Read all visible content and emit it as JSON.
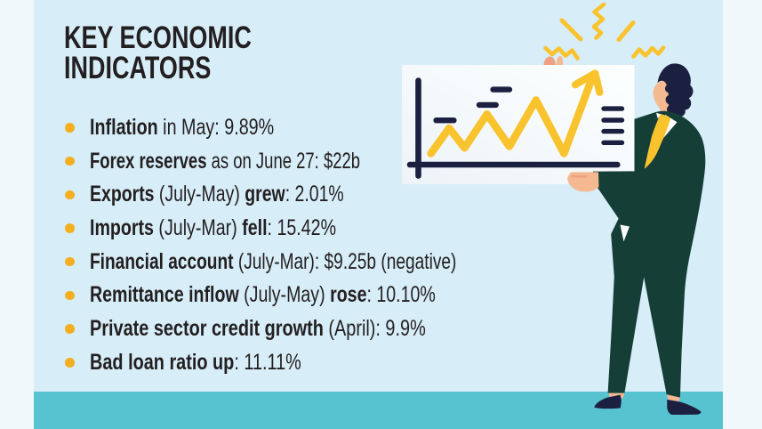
{
  "title": {
    "line1": "KEY ECONOMIC",
    "line2": "INDICATORS"
  },
  "indicators": [
    {
      "segments": [
        {
          "t": "Inflation",
          "b": true
        },
        {
          "t": " in May: 9.89%",
          "b": false
        }
      ]
    },
    {
      "segments": [
        {
          "t": "Forex reserves",
          "b": true
        },
        {
          "t": " as on June 27: $22b",
          "b": false
        }
      ]
    },
    {
      "segments": [
        {
          "t": "Exports",
          "b": true
        },
        {
          "t": " (July-May) ",
          "b": false
        },
        {
          "t": "grew",
          "b": true
        },
        {
          "t": ": 2.01%",
          "b": false
        }
      ]
    },
    {
      "segments": [
        {
          "t": "Imports",
          "b": true
        },
        {
          "t": " (July-Mar) ",
          "b": false
        },
        {
          "t": "fell",
          "b": true
        },
        {
          "t": ": 15.42%",
          "b": false
        }
      ]
    },
    {
      "segments": [
        {
          "t": "Financial account",
          "b": true
        },
        {
          "t": " (July-Mar): $9.25b (negative)",
          "b": false
        }
      ]
    },
    {
      "segments": [
        {
          "t": "Remittance inflow",
          "b": true
        },
        {
          "t": " (July-May) ",
          "b": false
        },
        {
          "t": "rose",
          "b": true
        },
        {
          "t": ": 10.10%",
          "b": false
        }
      ]
    },
    {
      "segments": [
        {
          "t": "Private sector credit growth",
          "b": true
        },
        {
          "t": " (April): 9.9%",
          "b": false
        }
      ]
    },
    {
      "segments": [
        {
          "t": "Bad loan ratio up",
          "b": true
        },
        {
          "t": ": 11.11%",
          "b": false
        }
      ]
    }
  ],
  "illustration": {
    "icons": [
      "sparkle-burst-icon",
      "whiteboard-chart-icon",
      "man-with-board-figure"
    ],
    "chart_icon": "upward zigzag line with arrow"
  },
  "colors": {
    "background": "#d7edf8",
    "pale_margin": "#f0f8fb",
    "teal_band": "#57c3d0",
    "ink": "#231f20",
    "bullet": "#f5ae1e",
    "yellow": "#f9c32e",
    "navy": "#1b2040",
    "suit_green": "#153e37",
    "skin": "#f5b991",
    "skin_shade": "#f0a183",
    "board_white": "#fbfdfe"
  },
  "chart_data": {
    "type": "table",
    "title": "KEY ECONOMIC INDICATORS",
    "columns": [
      "indicator",
      "value"
    ],
    "rows": [
      [
        "Inflation in May",
        "9.89%"
      ],
      [
        "Forex reserves as on June 27",
        "$22b"
      ],
      [
        "Exports (July-May) grew",
        "2.01%"
      ],
      [
        "Imports (July-Mar) fell",
        "15.42%"
      ],
      [
        "Financial account (July-Mar)",
        "$9.25b (negative)"
      ],
      [
        "Remittance inflow (July-May) rose",
        "10.10%"
      ],
      [
        "Private sector credit growth (April)",
        "9.9%"
      ],
      [
        "Bad loan ratio up",
        "11.11%"
      ]
    ],
    "decorative_chart": {
      "type": "line",
      "trend": "zigzag rising with upward arrow",
      "axis_values_shown": false
    }
  }
}
